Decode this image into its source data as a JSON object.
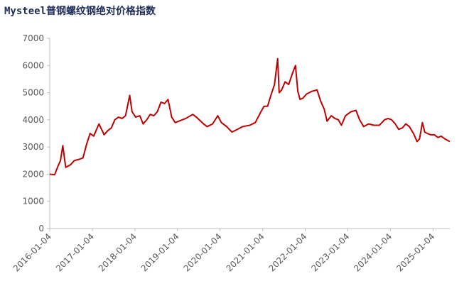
{
  "chart_data": {
    "type": "line",
    "title": "Mysteel普钢螺纹钢绝对价格指数",
    "x": [
      "2016-01-04",
      "2016-02-15",
      "2016-03-15",
      "2016-04-05",
      "2016-04-25",
      "2016-05-20",
      "2016-07-01",
      "2016-08-01",
      "2016-09-15",
      "2016-10-15",
      "2016-11-15",
      "2016-12-15",
      "2017-01-15",
      "2017-03-01",
      "2017-04-15",
      "2017-05-15",
      "2017-06-15",
      "2017-07-15",
      "2017-08-15",
      "2017-09-15",
      "2017-10-15",
      "2017-11-20",
      "2017-12-10",
      "2018-01-10",
      "2018-02-15",
      "2018-03-15",
      "2018-04-15",
      "2018-05-15",
      "2018-06-15",
      "2018-07-15",
      "2018-08-15",
      "2018-09-15",
      "2018-10-15",
      "2018-11-15",
      "2018-12-15",
      "2019-01-15",
      "2019-03-15",
      "2019-05-15",
      "2019-06-15",
      "2019-08-15",
      "2019-09-15",
      "2019-11-01",
      "2019-12-15",
      "2020-01-15",
      "2020-03-01",
      "2020-04-15",
      "2020-06-01",
      "2020-07-15",
      "2020-09-15",
      "2020-11-01",
      "2020-12-20",
      "2021-01-15",
      "2021-02-15",
      "2021-03-15",
      "2021-04-15",
      "2021-05-12",
      "2021-05-25",
      "2021-06-15",
      "2021-07-15",
      "2021-08-15",
      "2021-09-15",
      "2021-10-12",
      "2021-11-01",
      "2021-11-20",
      "2021-12-15",
      "2022-01-15",
      "2022-03-01",
      "2022-04-15",
      "2022-05-15",
      "2022-06-15",
      "2022-07-10",
      "2022-08-15",
      "2022-09-15",
      "2022-10-15",
      "2022-11-10",
      "2022-12-15",
      "2023-02-01",
      "2023-03-15",
      "2023-04-15",
      "2023-05-20",
      "2023-07-01",
      "2023-08-15",
      "2023-10-01",
      "2023-11-15",
      "2023-12-15",
      "2024-01-15",
      "2024-02-15",
      "2024-03-15",
      "2024-04-15",
      "2024-05-15",
      "2024-06-15",
      "2024-07-20",
      "2024-08-20",
      "2024-09-10",
      "2024-10-05",
      "2024-10-25",
      "2024-11-15",
      "2024-12-15",
      "2025-01-15",
      "2025-02-15",
      "2025-03-15",
      "2025-04-15",
      "2025-05-28"
    ],
    "series": [
      {
        "name": "Mysteel普钢螺纹钢绝对价格指数",
        "color": "#c00000",
        "values": [
          2000,
          1980,
          2300,
          2500,
          3050,
          2250,
          2350,
          2500,
          2550,
          2600,
          3100,
          3500,
          3400,
          3850,
          3450,
          3600,
          3700,
          4000,
          4100,
          4050,
          4150,
          4900,
          4300,
          4100,
          4150,
          3850,
          4000,
          4200,
          4150,
          4300,
          4650,
          4600,
          4750,
          4100,
          3900,
          3950,
          4050,
          4200,
          4100,
          3850,
          3750,
          3850,
          4150,
          3900,
          3750,
          3550,
          3650,
          3750,
          3800,
          3900,
          4300,
          4500,
          4500,
          4900,
          5300,
          6250,
          5000,
          5100,
          5400,
          5300,
          5700,
          6000,
          5050,
          4750,
          4800,
          4950,
          5050,
          5100,
          4700,
          4400,
          3950,
          4150,
          4050,
          4000,
          3800,
          4150,
          4300,
          4350,
          4000,
          3750,
          3850,
          3800,
          3800,
          4000,
          4050,
          4000,
          3850,
          3650,
          3700,
          3850,
          3750,
          3500,
          3200,
          3300,
          3900,
          3550,
          3500,
          3450,
          3450,
          3350,
          3400,
          3300,
          3200
        ]
      }
    ],
    "xlim": [
      "2016-01-04",
      "2025-05-28"
    ],
    "xticks": [
      "2016-01-04",
      "2017-01-04",
      "2018-01-04",
      "2019-01-04",
      "2020-01-04",
      "2021-01-04",
      "2022-01-04",
      "2023-01-04",
      "2024-01-04",
      "2025-01-04"
    ],
    "ylim": [
      0,
      7000
    ],
    "yticks": [
      0,
      1000,
      2000,
      3000,
      4000,
      5000,
      6000,
      7000
    ],
    "grid": false
  }
}
